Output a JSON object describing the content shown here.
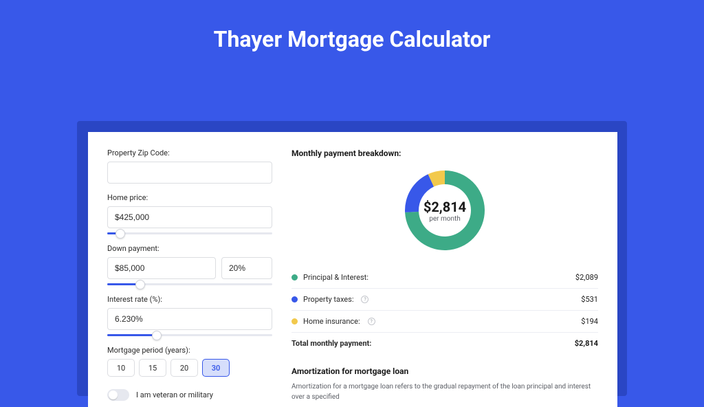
{
  "page": {
    "title": "Thayer Mortgage Calculator",
    "background_color": "#3858e9",
    "shadow_color": "#2a46c4",
    "card_bg": "#ffffff"
  },
  "form": {
    "zip": {
      "label": "Property Zip Code:",
      "value": ""
    },
    "home_price": {
      "label": "Home price:",
      "value": "$425,000",
      "slider_pct": 8
    },
    "down_payment": {
      "label": "Down payment:",
      "amount": "$85,000",
      "percent": "20%",
      "slider_pct": 20
    },
    "interest_rate": {
      "label": "Interest rate (%):",
      "value": "6.230%",
      "slider_pct": 30
    },
    "period": {
      "label": "Mortgage period (years):",
      "options": [
        "10",
        "15",
        "20",
        "30"
      ],
      "active_index": 3
    },
    "veteran": {
      "label": "I am veteran or military",
      "on": false
    }
  },
  "breakdown": {
    "title": "Monthly payment breakdown:",
    "donut": {
      "type": "donut",
      "center_amount": "$2,814",
      "center_sub": "per month",
      "outer_radius": 58,
      "inner_radius": 38,
      "slices": [
        {
          "label": "Principal & Interest",
          "pct": 74.2,
          "color": "#3dab87"
        },
        {
          "label": "Property taxes",
          "pct": 18.9,
          "color": "#3858e9"
        },
        {
          "label": "Home insurance",
          "pct": 6.9,
          "color": "#f2c94c"
        }
      ]
    },
    "lines": [
      {
        "dot_color": "#3dab87",
        "label": "Principal & Interest:",
        "info": false,
        "value": "$2,089"
      },
      {
        "dot_color": "#3858e9",
        "label": "Property taxes:",
        "info": true,
        "value": "$531"
      },
      {
        "dot_color": "#f2c94c",
        "label": "Home insurance:",
        "info": true,
        "value": "$194"
      }
    ],
    "total": {
      "label": "Total monthly payment:",
      "value": "$2,814"
    }
  },
  "amortization": {
    "title": "Amortization for mortgage loan",
    "text": "Amortization for a mortgage loan refers to the gradual repayment of the loan principal and interest over a specified"
  }
}
